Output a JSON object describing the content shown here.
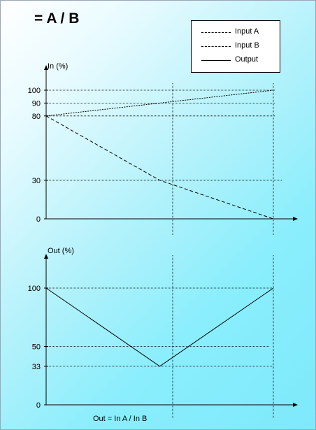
{
  "title": "= A / B",
  "legend": {
    "items": [
      {
        "label": "Input A",
        "style": "dashed-fine"
      },
      {
        "label": "Input B",
        "style": "dashed"
      },
      {
        "label": "Output",
        "style": "solid"
      }
    ]
  },
  "chart_data": [
    {
      "type": "line",
      "ylabel": "In (%)",
      "ylim": [
        0,
        100
      ],
      "y_ticks": [
        0,
        30,
        80,
        90,
        100
      ],
      "x_markers": [
        "left",
        "mid",
        "right"
      ],
      "series": [
        {
          "name": "Input A",
          "x": [
            0,
            0.5,
            1
          ],
          "values": [
            80,
            90,
            100
          ]
        },
        {
          "name": "Input B",
          "x": [
            0,
            0.5,
            1
          ],
          "values": [
            80,
            30,
            0
          ]
        }
      ]
    },
    {
      "type": "line",
      "ylabel": "Out (%)",
      "xlabel": "Out = In A / In B",
      "ylim": [
        0,
        100
      ],
      "y_ticks": [
        0,
        33,
        50,
        100
      ],
      "series": [
        {
          "name": "Output",
          "x": [
            0,
            0.5,
            1
          ],
          "values": [
            100,
            33,
            100
          ]
        }
      ]
    }
  ]
}
